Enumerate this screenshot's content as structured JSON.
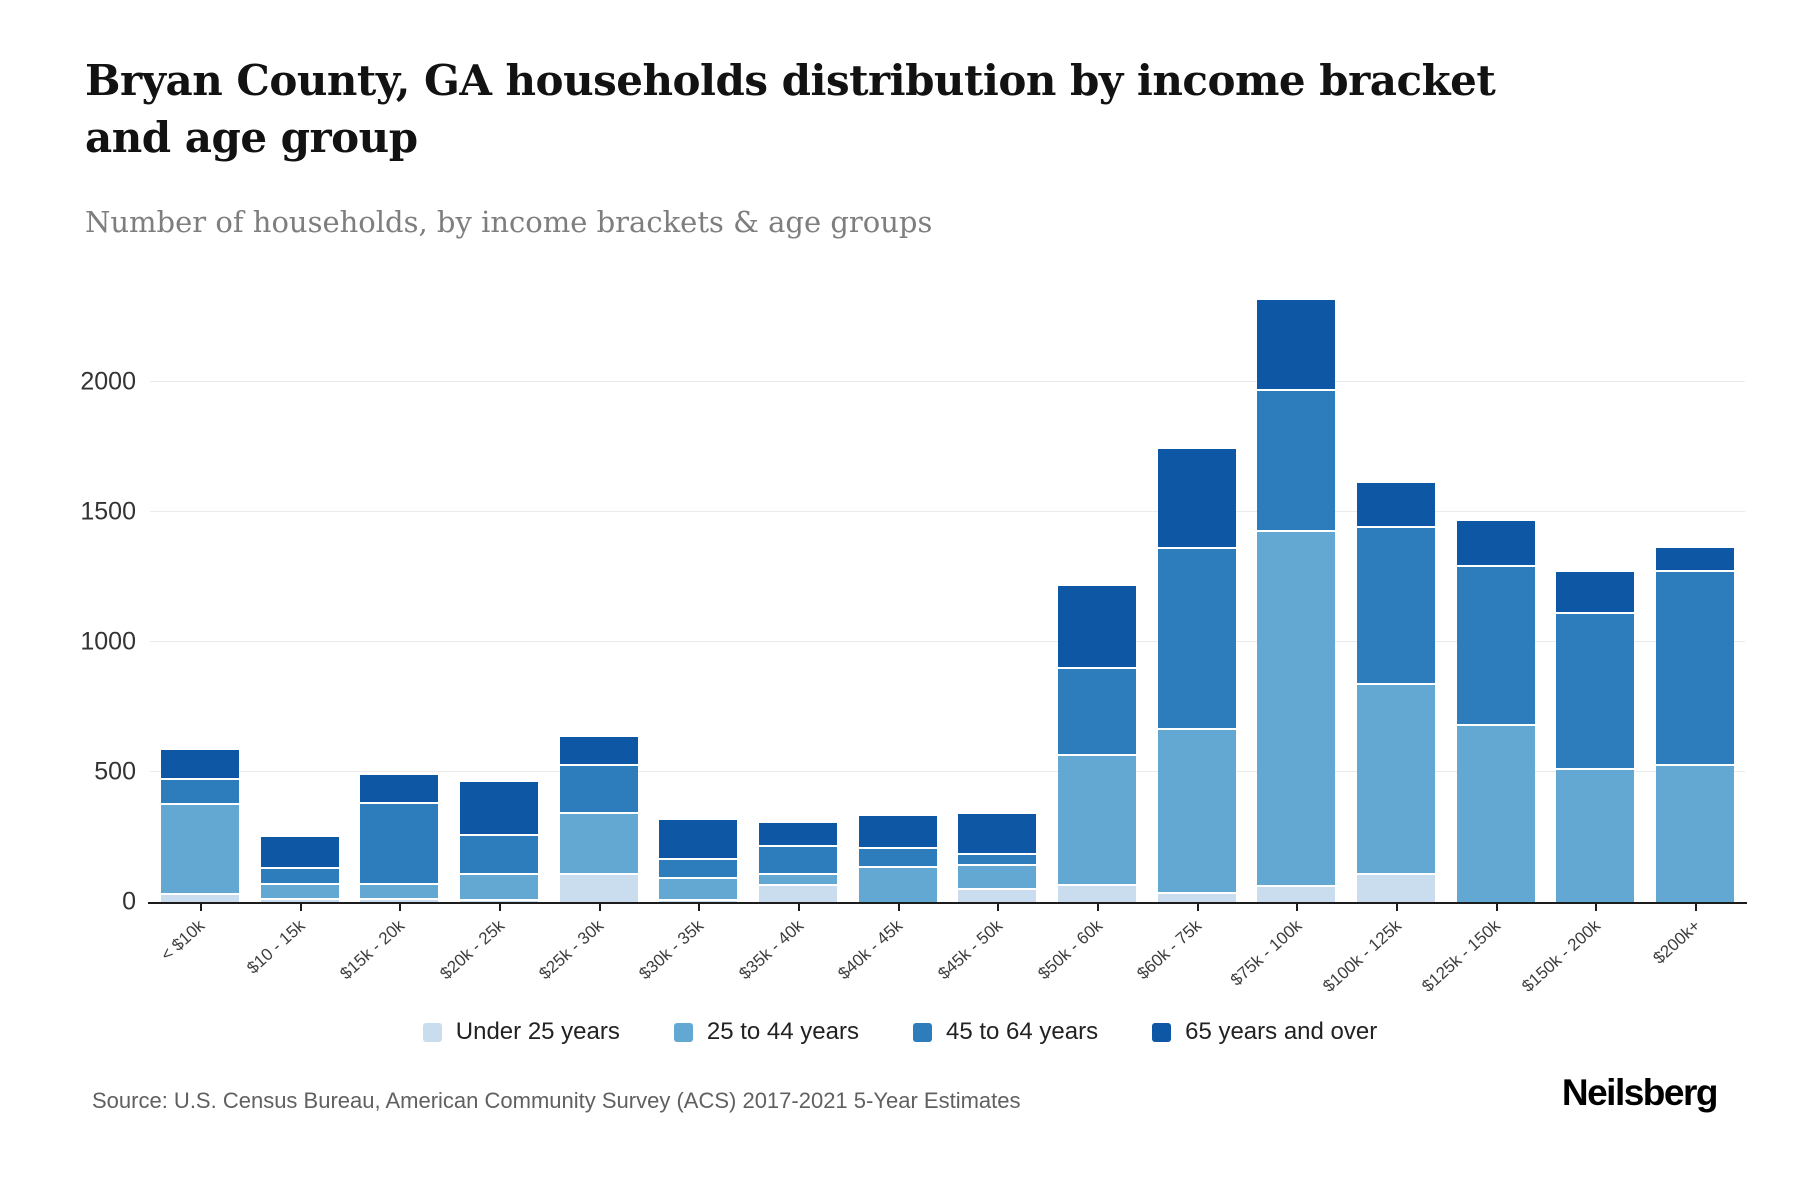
{
  "header": {
    "title": "Bryan County, GA households distribution by income bracket and age group",
    "subtitle": "Number of households, by income brackets & age groups"
  },
  "chart_data": {
    "type": "bar",
    "stacked": true,
    "title": "Bryan County, GA households distribution by income bracket and age group",
    "subtitle": "Number of households, by income brackets & age groups",
    "xlabel": "",
    "ylabel": "",
    "grid": "horizontal",
    "legend_position": "bottom",
    "y_ticks": [
      0,
      500,
      1000,
      1500,
      2000
    ],
    "ylim": [
      0,
      2490
    ],
    "categories": [
      "< $10k",
      "$10 - 15k",
      "$15k - 20k",
      "$20k - 25k",
      "$25k - 30k",
      "$30k - 35k",
      "$35k - 40k",
      "$40k - 45k",
      "$45k - 50k",
      "$50k - 60k",
      "$60k - 75k",
      "$75k - 100k",
      "$100k - 125k",
      "$125k - 150k",
      "$150k - 200k",
      "$200k+"
    ],
    "series": [
      {
        "name": "Under 25 years",
        "color": "#c9ddef",
        "values": [
          35,
          15,
          15,
          10,
          110,
          10,
          70,
          0,
          55,
          70,
          40,
          65,
          110,
          0,
          0,
          0
        ]
      },
      {
        "name": "25 to 44 years",
        "color": "#63a8d3",
        "values": [
          345,
          60,
          60,
          100,
          235,
          85,
          40,
          140,
          90,
          500,
          630,
          1365,
          730,
          685,
          515,
          530
        ]
      },
      {
        "name": "45 to 64 years",
        "color": "#2d7cbb",
        "values": [
          95,
          60,
          310,
          150,
          185,
          75,
          110,
          70,
          45,
          335,
          695,
          540,
          605,
          610,
          600,
          745
        ]
      },
      {
        "name": "65 years and over",
        "color": "#0d57a4",
        "values": [
          110,
          115,
          105,
          200,
          105,
          145,
          85,
          120,
          150,
          310,
          375,
          345,
          165,
          170,
          155,
          85
        ]
      }
    ]
  },
  "footer": {
    "source": "Source: U.S. Census Bureau, American Community Survey (ACS) 2017-2021 5-Year Estimates",
    "brand": "Neilsberg"
  }
}
